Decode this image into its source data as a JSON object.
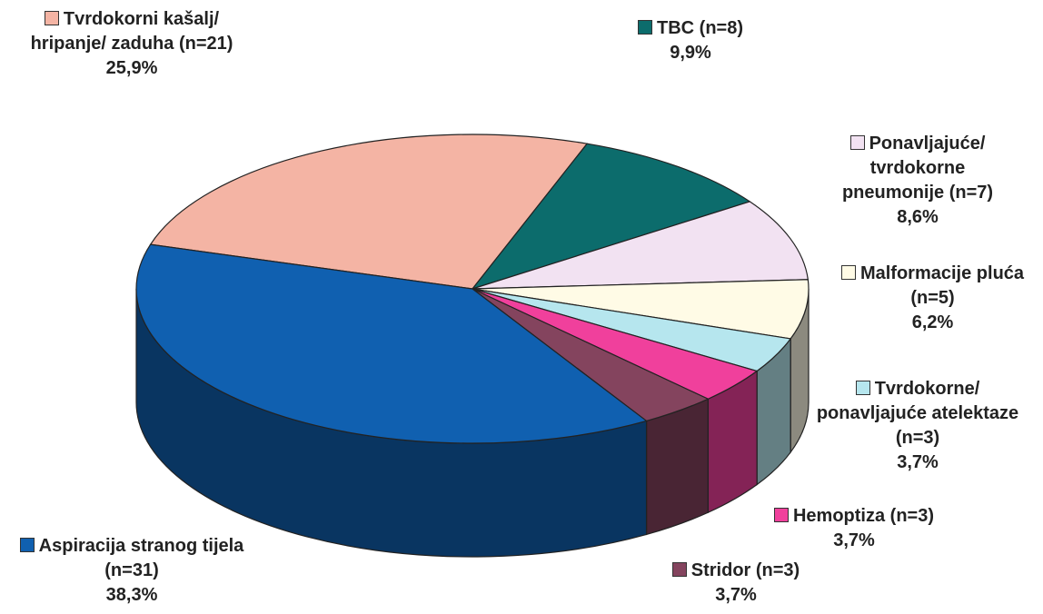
{
  "chart_data": {
    "type": "pie",
    "categories": [
      "Tvrdokorni kašalj/ hripanje/ zaduha (n=21)",
      "TBC (n=8)",
      "Ponavljajuće/ tvrdokorne pneumonije (n=7)",
      "Malformacije pluća (n=5)",
      "Tvrdokorne/ ponavljajuće atelektaze (n=3)",
      "Hemoptiza (n=3)",
      "Stridor (n=3)",
      "Aspiracija stranog tijela (n=31)"
    ],
    "values": [
      25.9,
      9.9,
      8.6,
      6.2,
      3.7,
      3.7,
      3.7,
      38.3
    ],
    "value_labels": [
      "25,9%",
      "9,9%",
      "8,6%",
      "6,2%",
      "3,7%",
      "3,7%",
      "3,7%",
      "38,3%"
    ],
    "colors": [
      "#f4b4a4",
      "#0c6c6c",
      "#f2e2f2",
      "#fffbe6",
      "#b6e6ee",
      "#f0409c",
      "#84445e",
      "#1060b0"
    ]
  }
}
